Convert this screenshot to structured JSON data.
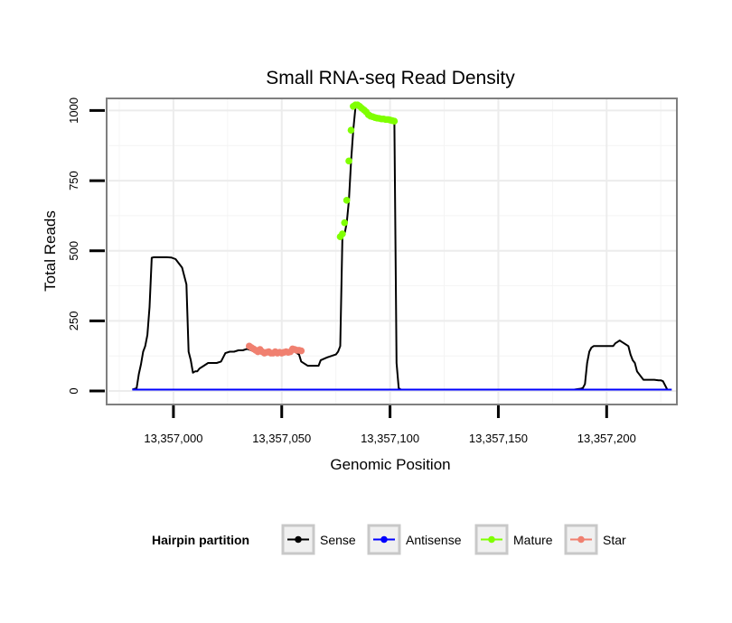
{
  "chart_data": {
    "type": "line",
    "title": "Small RNA-seq Read Density",
    "xlabel": "Genomic Position",
    "ylabel": "Total Reads",
    "xlim": [
      13356970,
      13357232
    ],
    "ylim": [
      -45,
      1040
    ],
    "x_ticks": [
      {
        "value": 13357000,
        "label": "13,357,000"
      },
      {
        "value": 13357050,
        "label": "13,357,050"
      },
      {
        "value": 13357100,
        "label": "13,357,100"
      },
      {
        "value": 13357150,
        "label": "13,357,150"
      },
      {
        "value": 13357200,
        "label": "13,357,200"
      }
    ],
    "y_ticks": [
      {
        "value": 0,
        "label": "0"
      },
      {
        "value": 250,
        "label": "250"
      },
      {
        "value": 500,
        "label": "500"
      },
      {
        "value": 750,
        "label": "750"
      },
      {
        "value": 1000,
        "label": "1000"
      }
    ],
    "legend": {
      "title": "Hairpin partition",
      "position": "bottom",
      "items": [
        {
          "name": "Sense",
          "color": "#000000"
        },
        {
          "name": "Antisense",
          "color": "#0000ff"
        },
        {
          "name": "Mature",
          "color": "#7fff00"
        },
        {
          "name": "Star",
          "color": "#f08070"
        }
      ]
    },
    "series": [
      {
        "name": "Sense",
        "color": "#000000",
        "style": "line",
        "x": [
          13356981,
          13356983,
          13356984,
          13356985,
          13356986,
          13356987,
          13356988,
          13356989,
          13356990,
          13356991,
          13356992,
          13356995,
          13356997,
          13356999,
          13357001,
          13357002,
          13357004,
          13357006,
          13357007,
          13357008,
          13357009,
          13357010,
          13357011,
          13357012,
          13357014,
          13357016,
          13357018,
          13357020,
          13357022,
          13357024,
          13357026,
          13357028,
          13357030,
          13357032,
          13357034,
          13357036,
          13357038,
          13357040,
          13357045,
          13357050,
          13357055,
          13357058,
          13357059,
          13357062,
          13357064,
          13357067,
          13357068,
          13357071,
          13357073,
          13357075,
          13357076,
          13357077,
          13357078,
          13357079,
          13357080,
          13357081,
          13357082,
          13357083,
          13357084,
          13357085,
          13357087,
          13357090,
          13357093,
          13357096,
          13357099,
          13357102,
          13357103,
          13357104,
          13357105,
          13357120,
          13357150,
          13357175,
          13357180,
          13357185,
          13357188,
          13357189,
          13357190,
          13357191,
          13357192,
          13357193,
          13357194,
          13357196,
          13357198,
          13357200,
          13357203,
          13357204,
          13357205,
          13357206,
          13357207,
          13357208,
          13357210,
          13357211,
          13357212,
          13357213,
          13357214,
          13357217,
          13357220,
          13357222,
          13357224,
          13357225,
          13357226,
          13357228,
          13357230
        ],
        "y": [
          5,
          10,
          60,
          95,
          140,
          160,
          200,
          300,
          475,
          477,
          477,
          477,
          477,
          476,
          470,
          460,
          440,
          380,
          140,
          110,
          65,
          70,
          70,
          80,
          90,
          100,
          100,
          100,
          105,
          135,
          140,
          140,
          145,
          145,
          150,
          145,
          140,
          140,
          140,
          140,
          145,
          130,
          105,
          90,
          90,
          90,
          110,
          120,
          125,
          130,
          140,
          160,
          550,
          560,
          600,
          680,
          820,
          930,
          1010,
          1015,
          1010,
          995,
          980,
          970,
          965,
          960,
          100,
          10,
          5,
          5,
          5,
          5,
          5,
          5,
          8,
          10,
          25,
          100,
          140,
          155,
          160,
          160,
          160,
          160,
          160,
          170,
          175,
          180,
          175,
          170,
          160,
          130,
          110,
          100,
          70,
          40,
          40,
          40,
          38,
          38,
          35,
          5,
          5
        ]
      },
      {
        "name": "Antisense",
        "color": "#0000ff",
        "style": "line",
        "x": [
          13356981,
          13357230
        ],
        "y": [
          5,
          5
        ]
      },
      {
        "name": "Mature",
        "color": "#7fff00",
        "style": "points",
        "x": [
          13357077,
          13357078,
          13357079,
          13357080,
          13357081,
          13357082,
          13357083,
          13357084,
          13357085,
          13357086,
          13357087,
          13357088,
          13357089,
          13357090,
          13357091,
          13357092,
          13357093,
          13357094,
          13357095,
          13357096,
          13357097,
          13357098,
          13357099,
          13357100,
          13357101,
          13357102
        ],
        "y": [
          550,
          560,
          600,
          680,
          820,
          930,
          1015,
          1020,
          1020,
          1015,
          1008,
          1002,
          995,
          985,
          980,
          978,
          975,
          973,
          972,
          970,
          970,
          968,
          968,
          966,
          964,
          962
        ]
      },
      {
        "name": "Star",
        "color": "#f08070",
        "style": "points",
        "x": [
          13357035,
          13357036,
          13357037,
          13357038,
          13357039,
          13357040,
          13357041,
          13357042,
          13357043,
          13357044,
          13357045,
          13357046,
          13357047,
          13357048,
          13357049,
          13357050,
          13357051,
          13357052,
          13357053,
          13357054,
          13357055,
          13357056,
          13357057,
          13357058,
          13357059
        ],
        "y": [
          160,
          155,
          150,
          145,
          140,
          148,
          140,
          135,
          138,
          140,
          135,
          135,
          140,
          135,
          138,
          135,
          138,
          140,
          138,
          140,
          150,
          148,
          145,
          145,
          143
        ]
      }
    ]
  }
}
